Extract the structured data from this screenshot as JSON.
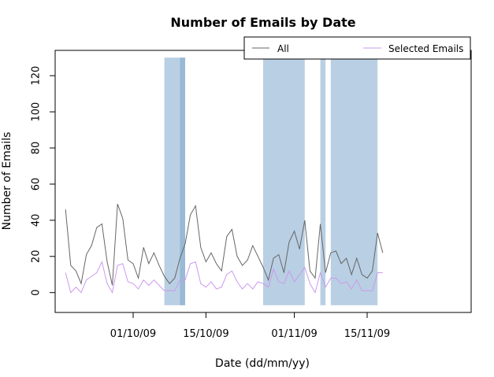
{
  "chart_data": {
    "type": "line",
    "title": "Number of Emails by Date",
    "xlabel": "Date (dd/mm/yy)",
    "ylabel": "Number of Emails",
    "ylim": [
      -11,
      134
    ],
    "yticks": [
      0,
      20,
      40,
      60,
      80,
      100,
      120
    ],
    "xlim": [
      "2009-09-16",
      "2009-12-05"
    ],
    "xticks": [
      {
        "date": "2009-10-01",
        "label": "01/10/09"
      },
      {
        "date": "2009-10-15",
        "label": "15/10/09"
      },
      {
        "date": "2009-11-01",
        "label": "01/11/09"
      },
      {
        "date": "2009-11-15",
        "label": "15/11/09"
      }
    ],
    "legend_position": "top-right",
    "x_start": "2009-09-18",
    "series": [
      {
        "name": "All",
        "color": "#666666",
        "values": [
          46,
          15,
          12,
          5,
          21,
          26,
          36,
          38,
          17,
          4,
          49,
          41,
          18,
          16,
          8,
          25,
          16,
          22,
          15,
          9,
          5,
          8,
          19,
          27,
          43,
          48,
          25,
          17,
          22,
          16,
          12,
          31,
          35,
          20,
          15,
          18,
          26,
          20,
          14,
          7,
          19,
          21,
          11,
          28,
          34,
          24,
          40,
          12,
          8,
          38,
          11,
          22,
          23,
          16,
          19,
          10,
          19,
          10,
          8,
          12,
          33,
          22
        ]
      },
      {
        "name": "Selected Emails",
        "color": "#cc99ee",
        "values": [
          11,
          0,
          3,
          0,
          7,
          9,
          11,
          17,
          5,
          0,
          15,
          16,
          6,
          5,
          2,
          7,
          4,
          7,
          4,
          1,
          1,
          1,
          7,
          7,
          16,
          17,
          5,
          3,
          6,
          2,
          3,
          10,
          12,
          6,
          2,
          5,
          2,
          6,
          5,
          3,
          13,
          6,
          5,
          12,
          6,
          10,
          14,
          5,
          0,
          11,
          3,
          8,
          8,
          5,
          6,
          2,
          7,
          1,
          1,
          1,
          11,
          11
        ]
      }
    ],
    "highlight_color": "#7fa8cc",
    "highlights": [
      {
        "start": "2009-10-07",
        "end": "2009-10-11"
      },
      {
        "start": "2009-10-10",
        "end": "2009-10-11"
      },
      {
        "start": "2009-10-26",
        "end": "2009-11-03"
      },
      {
        "start": "2009-11-06",
        "end": "2009-11-07"
      },
      {
        "start": "2009-11-08",
        "end": "2009-11-17"
      }
    ]
  }
}
